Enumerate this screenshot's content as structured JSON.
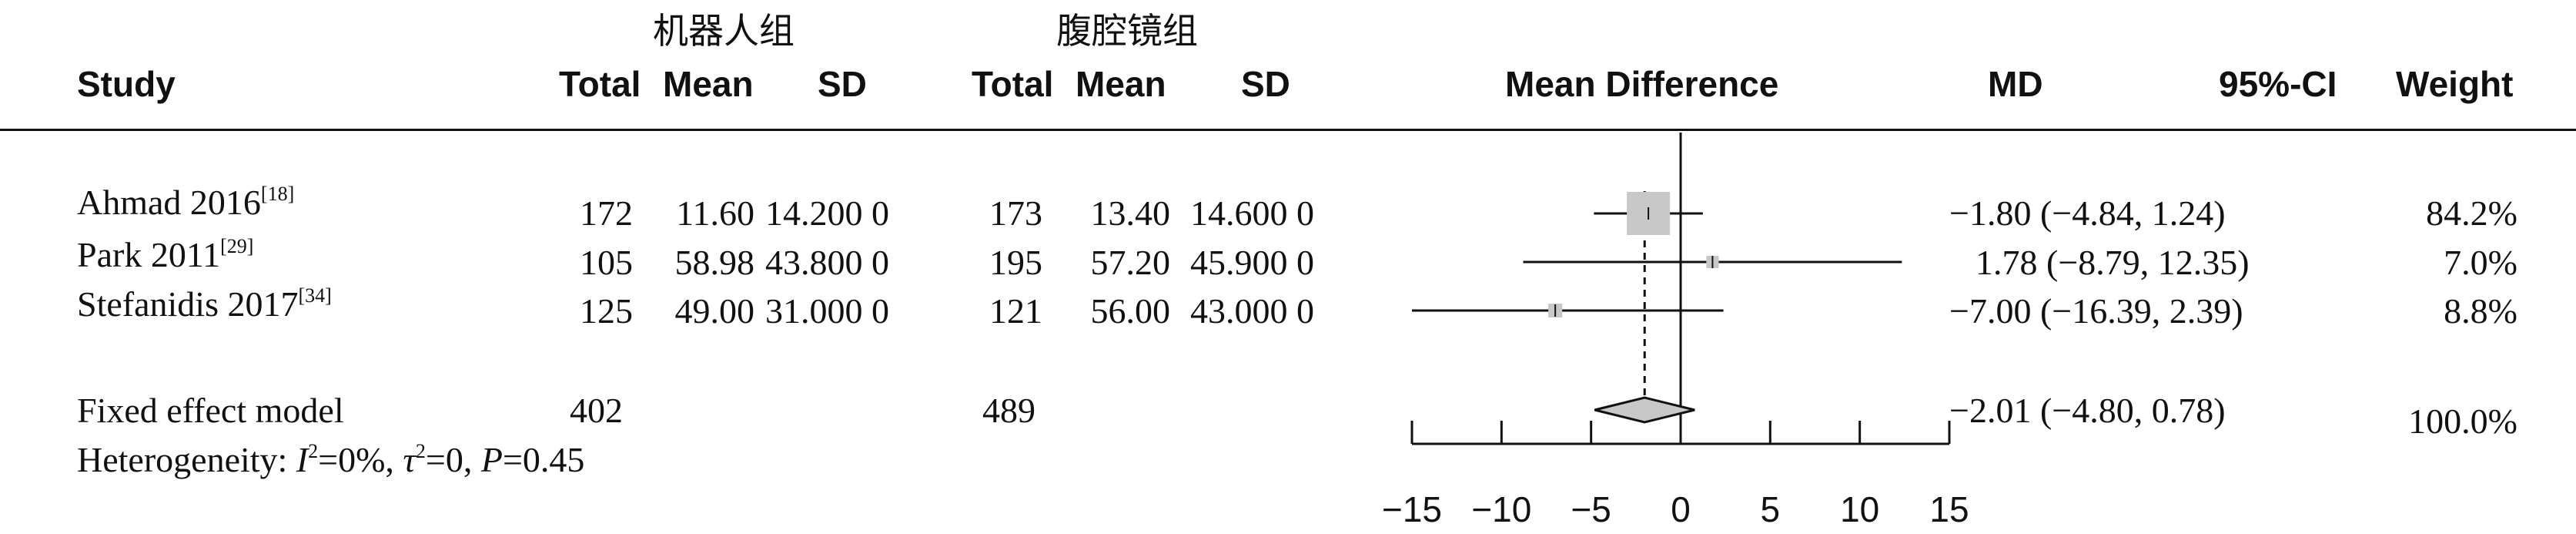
{
  "groups": {
    "robot": "机器人组",
    "laparoscopy": "腹腔镜组"
  },
  "headers": {
    "study": "Study",
    "total1": "Total",
    "mean1": "Mean",
    "sd1": "SD",
    "total2": "Total",
    "mean2": "Mean",
    "sd2": "SD",
    "md_plot": "Mean Difference",
    "md": "MD",
    "ci": "95%-CI",
    "weight": "Weight"
  },
  "studies": [
    {
      "name": "Ahmad 2016",
      "ref": "[18]",
      "total1": "172",
      "mean1": "11.60",
      "sd1": "14.200 0",
      "total2": "173",
      "mean2": "13.40",
      "sd2": "14.600 0",
      "md_ci": "−1.80 (−4.84, 1.24)",
      "weight": "84.2%"
    },
    {
      "name": "Park 2011",
      "ref": "[29]",
      "total1": "105",
      "mean1": "58.98",
      "sd1": "43.800 0",
      "total2": "195",
      "mean2": "57.20",
      "sd2": "45.900 0",
      "md_ci": "1.78 (−8.79, 12.35)",
      "weight": "7.0%"
    },
    {
      "name": "Stefanidis 2017",
      "ref": "[34]",
      "total1": "125",
      "mean1": "49.00",
      "sd1": "31.000 0",
      "total2": "121",
      "mean2": "56.00",
      "sd2": "43.000 0",
      "md_ci": "−7.00 (−16.39, 2.39)",
      "weight": "8.8%"
    }
  ],
  "summary": {
    "label": "Fixed effect model",
    "total1": "402",
    "total2": "489",
    "md_ci": "−2.01 (−4.80, 0.78)",
    "weight": "100.0%"
  },
  "heterogeneity": {
    "prefix": "Heterogeneity: ",
    "i2": "=0%, ",
    "tau2": "=0, ",
    "p": "=0.45"
  },
  "chart_data": {
    "type": "forest",
    "xlabel": "",
    "xlim": [
      -15,
      15
    ],
    "xticks": [
      -15,
      -10,
      -5,
      0,
      5,
      10,
      15
    ],
    "reference_line": 0,
    "studies": [
      {
        "name": "Ahmad 2016",
        "md": -1.8,
        "lower": -4.84,
        "upper": 1.24,
        "weight": 84.2
      },
      {
        "name": "Park 2011",
        "md": 1.78,
        "lower": -8.79,
        "upper": 12.35,
        "weight": 7.0
      },
      {
        "name": "Stefanidis 2017",
        "md": -7.0,
        "lower": -16.39,
        "upper": 2.39,
        "weight": 8.8
      }
    ],
    "pooled": {
      "name": "Fixed effect model",
      "md": -2.01,
      "lower": -4.8,
      "upper": 0.78,
      "weight": 100.0
    },
    "colors": {
      "box": "#c8c8c8",
      "diamond": "#c8c8c8",
      "line": "#111111"
    }
  }
}
